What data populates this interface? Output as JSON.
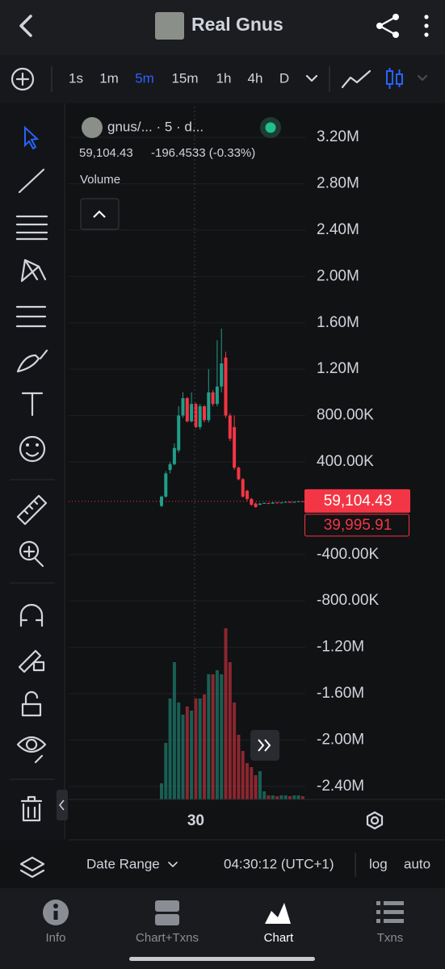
{
  "header": {
    "title": "Real Gnus"
  },
  "toolbar": {
    "intervals": [
      "1s",
      "1m",
      "5m",
      "15m",
      "1h",
      "4h",
      "D"
    ],
    "active": "5m"
  },
  "chart_data": {
    "type": "candlestick",
    "symbol": "gnus/... · 5 · d...",
    "last": "59,104.43",
    "change": "-196.4533 (-0.33%)",
    "volume_label": "Volume",
    "up_color": "#1f9e89",
    "down_color": "#f23645",
    "categories": [
      null,
      null,
      null,
      null,
      null,
      null,
      null,
      null,
      "30",
      null,
      null,
      null,
      null,
      null,
      null,
      null,
      null,
      null,
      null,
      null,
      null,
      null,
      null,
      null,
      null,
      null,
      null,
      null,
      null,
      null,
      null,
      null,
      null,
      null
    ],
    "open": [
      20000,
      100000,
      330000,
      380000,
      500000,
      800000,
      950000,
      750000,
      900000,
      700000,
      880000,
      760000,
      1000000,
      900000,
      1050000,
      1300000,
      800000,
      700000,
      350000,
      250000,
      150000,
      80000,
      40000,
      30000,
      40000,
      45000,
      40000,
      50000,
      45000,
      50000,
      55000,
      50000,
      55000,
      60000
    ],
    "high": [
      110000,
      320000,
      400000,
      560000,
      880000,
      1000000,
      960000,
      1000000,
      910000,
      900000,
      890000,
      1200000,
      1020000,
      1450000,
      1550000,
      1350000,
      820000,
      800000,
      360000,
      260000,
      160000,
      90000,
      50000,
      45000,
      50000,
      48000,
      52000,
      52000,
      52000,
      58000,
      57000,
      58000,
      62000,
      62000
    ],
    "low": [
      10000,
      90000,
      300000,
      370000,
      480000,
      780000,
      740000,
      740000,
      690000,
      680000,
      740000,
      740000,
      880000,
      880000,
      1000000,
      780000,
      580000,
      330000,
      240000,
      90000,
      60000,
      20000,
      5000,
      25000,
      38000,
      35000,
      38000,
      40000,
      42000,
      48000,
      45000,
      50000,
      52000,
      55000
    ],
    "close": [
      100000,
      300000,
      380000,
      520000,
      800000,
      950000,
      750000,
      900000,
      700000,
      880000,
      760000,
      1000000,
      900000,
      1050000,
      1250000,
      800000,
      600000,
      350000,
      250000,
      100000,
      80000,
      30000,
      10000,
      40000,
      45000,
      40000,
      50000,
      45000,
      50000,
      55000,
      50000,
      55000,
      60000,
      59104.43
    ],
    "volume": [
      20000,
      70000,
      125000,
      170000,
      120000,
      105000,
      115000,
      110000,
      125000,
      125000,
      130000,
      155000,
      155000,
      160000,
      155000,
      212000,
      170000,
      120000,
      80000,
      60000,
      45000,
      40000,
      30000,
      35000,
      10000,
      5000,
      5000,
      4000,
      5000,
      5000,
      4000,
      5000,
      5000,
      4000
    ],
    "ylim": [
      -2513000,
      3466000
    ],
    "yticks": [
      {
        "value": 3200000,
        "label": "3.20M"
      },
      {
        "value": 2800000,
        "label": "2.80M"
      },
      {
        "value": 2400000,
        "label": "2.40M"
      },
      {
        "value": 2000000,
        "label": "2.00M"
      },
      {
        "value": 1600000,
        "label": "1.60M"
      },
      {
        "value": 1200000,
        "label": "1.20M"
      },
      {
        "value": 800000,
        "label": "800.00K"
      },
      {
        "value": 400000,
        "label": "400.00K"
      },
      {
        "value": -400000,
        "label": "-400.00K"
      },
      {
        "value": -800000,
        "label": "-800.00K"
      },
      {
        "value": -1200000,
        "label": "-1.20M"
      },
      {
        "value": -1600000,
        "label": "-1.60M"
      },
      {
        "value": -2000000,
        "label": "-2.00M"
      },
      {
        "value": -2400000,
        "label": "-2.40M"
      }
    ],
    "last_price": {
      "value": 59104.43,
      "label": "59,104.43"
    },
    "second_price": "39,995.91",
    "grid": true
  },
  "footer": {
    "date_range": "Date Range",
    "time": "04:30:12 (UTC+1)",
    "log": "log",
    "auto": "auto"
  },
  "nav": [
    "Info",
    "Chart+Txns",
    "Chart",
    "Txns"
  ],
  "nav_active": "Chart"
}
